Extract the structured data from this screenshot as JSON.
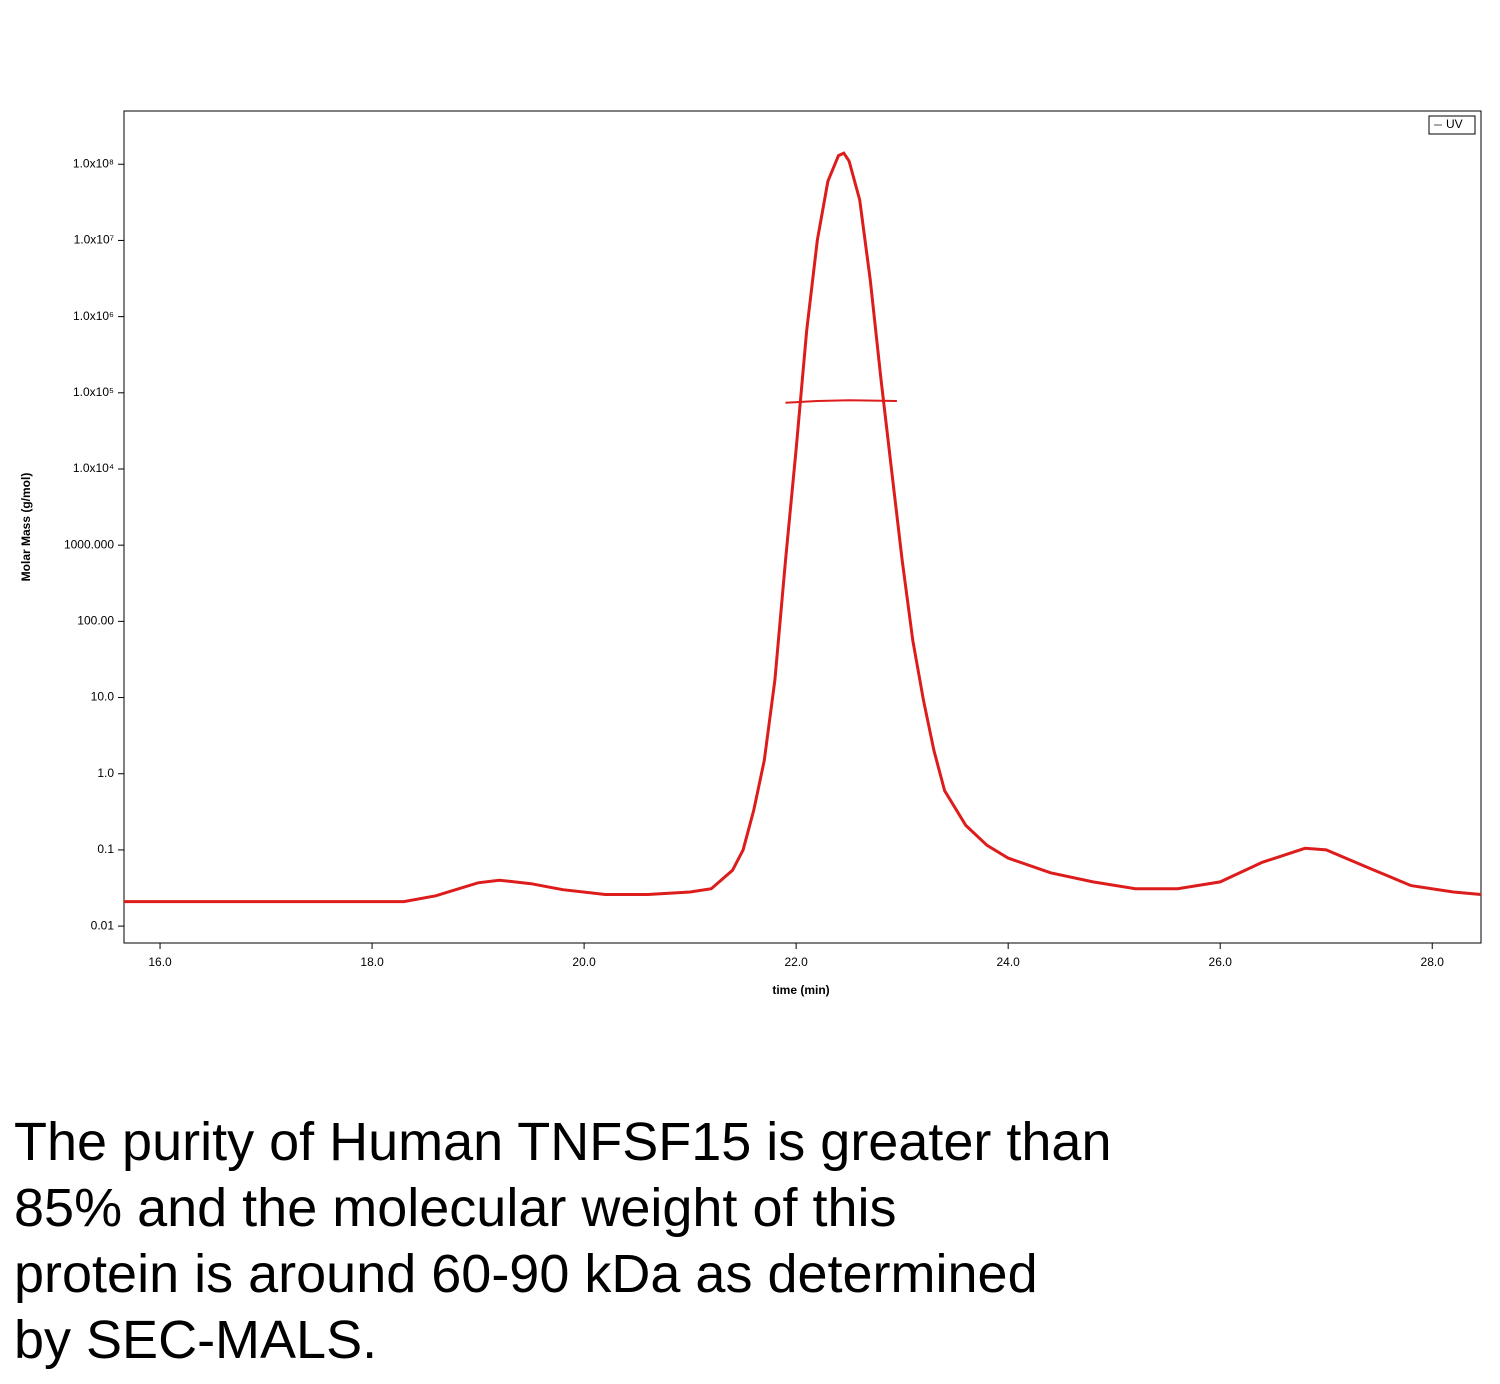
{
  "chart_data": {
    "type": "line",
    "x_label": "time (min)",
    "y_label": "Molar Mass (g/mol)",
    "xlim": [
      15.66,
      28.46
    ],
    "xticks": [
      {
        "value": 16,
        "label": "16.0"
      },
      {
        "value": 18,
        "label": "18.0"
      },
      {
        "value": 20,
        "label": "20.0"
      },
      {
        "value": 22,
        "label": "22.0"
      },
      {
        "value": 24,
        "label": "24.0"
      },
      {
        "value": 26,
        "label": "26.0"
      },
      {
        "value": 28,
        "label": "28.0"
      }
    ],
    "ylim": [
      0.006,
      500000000
    ],
    "y_log": true,
    "yticks": [
      0.01,
      0.1,
      {
        "value": 1,
        "label": "1.0"
      },
      {
        "value": 10,
        "label": "10.0"
      },
      {
        "value": 100,
        "label": "100.00"
      },
      {
        "value": 1000,
        "label": "1000.000"
      },
      {
        "value": 10000,
        "label": "1.0x10⁴"
      },
      {
        "value": 100000,
        "label": "1.0x10⁵"
      },
      {
        "value": 1000000,
        "label": "1.0x10⁶"
      },
      {
        "value": 10000000,
        "label": "1.0x10⁷"
      },
      {
        "value": 100000000,
        "label": "1.0x10⁸"
      }
    ],
    "legend": "upper right",
    "series": [
      {
        "name": "UV",
        "color": "#dd1c1c",
        "x": [
          15.66,
          18.3,
          18.6,
          19.0,
          19.2,
          19.5,
          19.8,
          20.2,
          20.6,
          21.0,
          21.2,
          21.4,
          21.5,
          21.6,
          21.7,
          21.8,
          21.9,
          22.0,
          22.1,
          22.2,
          22.3,
          22.4,
          22.45,
          22.5,
          22.6,
          22.7,
          22.8,
          22.9,
          23.0,
          23.1,
          23.2,
          23.3,
          23.4,
          23.6,
          23.8,
          24.0,
          24.4,
          24.8,
          25.2,
          25.6,
          26.0,
          26.4,
          26.8,
          27.0,
          27.4,
          27.8,
          28.2,
          28.46
        ],
        "values": [
          0.021,
          0.021,
          0.025,
          0.037,
          0.04,
          0.036,
          0.03,
          0.026,
          0.026,
          0.028,
          0.031,
          0.054,
          0.1,
          0.33,
          1.5,
          17,
          630,
          18000,
          660000,
          10000000,
          60000000,
          130000000,
          140000000,
          110000000,
          34000000,
          3000000,
          150000,
          9600,
          630,
          56,
          9.3,
          2,
          0.6,
          0.21,
          0.115,
          0.078,
          0.05,
          0.038,
          0.031,
          0.031,
          0.038,
          0.069,
          0.105,
          0.1,
          0.058,
          0.034,
          0.028,
          0.026
        ]
      },
      {
        "color": "#dd1c1c",
        "x": [
          21.9,
          22.2,
          22.5,
          22.95
        ],
        "values": [
          74000,
          78000,
          80000,
          78000
        ]
      }
    ]
  },
  "caption": [
    "The purity of Human TNFSF15 is greater than",
    "85% and the molecular weight of this",
    "protein is around 60-90 kDa as determined",
    "by SEC-MALS."
  ]
}
